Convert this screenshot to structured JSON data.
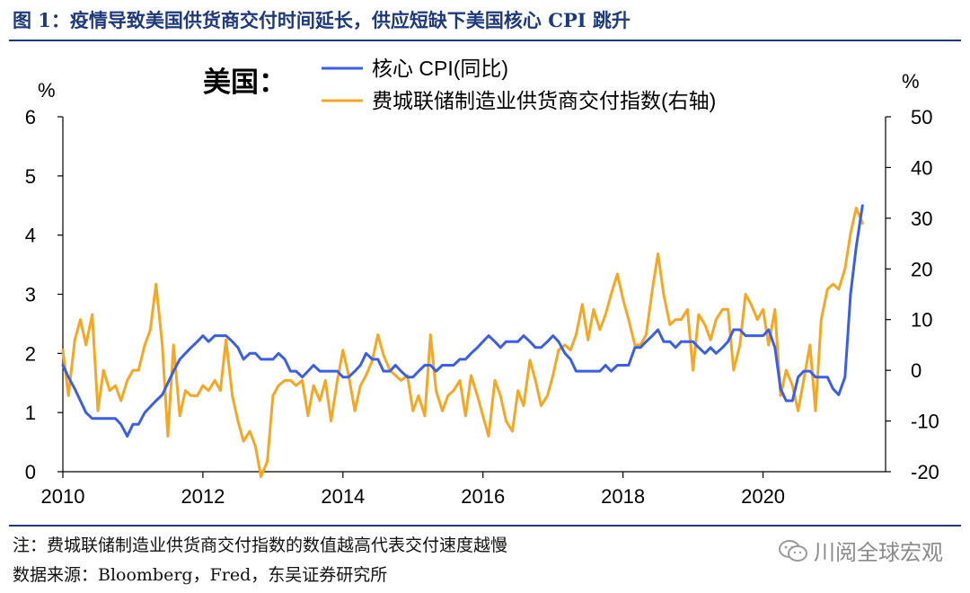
{
  "figure": {
    "title": "图 1：疫情导致美国供货商交付时间延长，供应短缺下美国核心 CPI 跳升",
    "note": "注：费城联储制造业供货商交付指数的数值越高代表交付速度越慢",
    "source": "数据来源：Bloomberg，Fred，东吴证券研究所",
    "watermark": "川阅全球宏观",
    "watermark_icon": "wechat-icon"
  },
  "chart_data": {
    "type": "line",
    "region_label": "美国：",
    "left_axis": {
      "unit": "%",
      "ylim": [
        0,
        6
      ],
      "ticks": [
        0,
        1,
        2,
        3,
        4,
        5,
        6
      ]
    },
    "right_axis": {
      "unit": "%",
      "ylim": [
        -20,
        50
      ],
      "ticks": [
        -20,
        -10,
        0,
        10,
        20,
        30,
        40,
        50
      ]
    },
    "x_axis": {
      "xlim": [
        2010.0,
        2021.75
      ],
      "ticks": [
        2010,
        2012,
        2014,
        2016,
        2018,
        2020
      ]
    },
    "grid": false,
    "legend_position": "top-center",
    "series": [
      {
        "name": "核心 CPI(同比)",
        "axis": "left",
        "color": "#3b5ee8",
        "points": [
          [
            2010.0,
            1.8
          ],
          [
            2010.08,
            1.6
          ],
          [
            2010.17,
            1.4
          ],
          [
            2010.25,
            1.2
          ],
          [
            2010.33,
            1.0
          ],
          [
            2010.42,
            0.9
          ],
          [
            2010.5,
            0.9
          ],
          [
            2010.58,
            0.9
          ],
          [
            2010.67,
            0.9
          ],
          [
            2010.75,
            0.9
          ],
          [
            2010.83,
            0.8
          ],
          [
            2010.92,
            0.6
          ],
          [
            2011.0,
            0.8
          ],
          [
            2011.08,
            0.8
          ],
          [
            2011.17,
            1.0
          ],
          [
            2011.25,
            1.1
          ],
          [
            2011.33,
            1.2
          ],
          [
            2011.42,
            1.3
          ],
          [
            2011.5,
            1.5
          ],
          [
            2011.58,
            1.7
          ],
          [
            2011.67,
            1.9
          ],
          [
            2011.75,
            2.0
          ],
          [
            2011.83,
            2.1
          ],
          [
            2011.92,
            2.2
          ],
          [
            2012.0,
            2.3
          ],
          [
            2012.08,
            2.2
          ],
          [
            2012.17,
            2.3
          ],
          [
            2012.25,
            2.3
          ],
          [
            2012.33,
            2.3
          ],
          [
            2012.42,
            2.2
          ],
          [
            2012.5,
            2.1
          ],
          [
            2012.58,
            1.9
          ],
          [
            2012.67,
            2.0
          ],
          [
            2012.75,
            2.0
          ],
          [
            2012.83,
            1.9
          ],
          [
            2012.92,
            1.9
          ],
          [
            2013.0,
            1.9
          ],
          [
            2013.08,
            2.0
          ],
          [
            2013.17,
            1.9
          ],
          [
            2013.25,
            1.7
          ],
          [
            2013.33,
            1.7
          ],
          [
            2013.42,
            1.6
          ],
          [
            2013.5,
            1.7
          ],
          [
            2013.58,
            1.8
          ],
          [
            2013.67,
            1.7
          ],
          [
            2013.75,
            1.7
          ],
          [
            2013.83,
            1.7
          ],
          [
            2013.92,
            1.7
          ],
          [
            2014.0,
            1.6
          ],
          [
            2014.08,
            1.6
          ],
          [
            2014.17,
            1.7
          ],
          [
            2014.25,
            1.8
          ],
          [
            2014.33,
            2.0
          ],
          [
            2014.42,
            1.9
          ],
          [
            2014.5,
            1.9
          ],
          [
            2014.58,
            1.7
          ],
          [
            2014.67,
            1.7
          ],
          [
            2014.75,
            1.8
          ],
          [
            2014.83,
            1.7
          ],
          [
            2014.92,
            1.6
          ],
          [
            2015.0,
            1.6
          ],
          [
            2015.08,
            1.7
          ],
          [
            2015.17,
            1.8
          ],
          [
            2015.25,
            1.8
          ],
          [
            2015.33,
            1.7
          ],
          [
            2015.42,
            1.8
          ],
          [
            2015.5,
            1.8
          ],
          [
            2015.58,
            1.8
          ],
          [
            2015.67,
            1.9
          ],
          [
            2015.75,
            1.9
          ],
          [
            2015.83,
            2.0
          ],
          [
            2015.92,
            2.1
          ],
          [
            2016.0,
            2.2
          ],
          [
            2016.08,
            2.3
          ],
          [
            2016.17,
            2.2
          ],
          [
            2016.25,
            2.1
          ],
          [
            2016.33,
            2.2
          ],
          [
            2016.42,
            2.2
          ],
          [
            2016.5,
            2.2
          ],
          [
            2016.58,
            2.3
          ],
          [
            2016.67,
            2.2
          ],
          [
            2016.75,
            2.1
          ],
          [
            2016.83,
            2.1
          ],
          [
            2016.92,
            2.2
          ],
          [
            2017.0,
            2.3
          ],
          [
            2017.08,
            2.2
          ],
          [
            2017.17,
            2.0
          ],
          [
            2017.25,
            1.9
          ],
          [
            2017.33,
            1.7
          ],
          [
            2017.42,
            1.7
          ],
          [
            2017.5,
            1.7
          ],
          [
            2017.58,
            1.7
          ],
          [
            2017.67,
            1.7
          ],
          [
            2017.75,
            1.8
          ],
          [
            2017.83,
            1.7
          ],
          [
            2017.92,
            1.8
          ],
          [
            2018.0,
            1.8
          ],
          [
            2018.08,
            1.8
          ],
          [
            2018.17,
            2.1
          ],
          [
            2018.25,
            2.1
          ],
          [
            2018.33,
            2.2
          ],
          [
            2018.42,
            2.3
          ],
          [
            2018.5,
            2.4
          ],
          [
            2018.58,
            2.2
          ],
          [
            2018.67,
            2.2
          ],
          [
            2018.75,
            2.1
          ],
          [
            2018.83,
            2.2
          ],
          [
            2018.92,
            2.2
          ],
          [
            2019.0,
            2.2
          ],
          [
            2019.08,
            2.1
          ],
          [
            2019.17,
            2.0
          ],
          [
            2019.25,
            2.1
          ],
          [
            2019.33,
            2.0
          ],
          [
            2019.42,
            2.1
          ],
          [
            2019.5,
            2.2
          ],
          [
            2019.58,
            2.4
          ],
          [
            2019.67,
            2.4
          ],
          [
            2019.75,
            2.3
          ],
          [
            2019.83,
            2.3
          ],
          [
            2019.92,
            2.3
          ],
          [
            2020.0,
            2.3
          ],
          [
            2020.08,
            2.4
          ],
          [
            2020.17,
            2.1
          ],
          [
            2020.25,
            1.4
          ],
          [
            2020.33,
            1.2
          ],
          [
            2020.42,
            1.2
          ],
          [
            2020.5,
            1.6
          ],
          [
            2020.58,
            1.7
          ],
          [
            2020.67,
            1.7
          ],
          [
            2020.75,
            1.6
          ],
          [
            2020.83,
            1.6
          ],
          [
            2020.92,
            1.6
          ],
          [
            2021.0,
            1.4
          ],
          [
            2021.08,
            1.3
          ],
          [
            2021.17,
            1.6
          ],
          [
            2021.25,
            3.0
          ],
          [
            2021.33,
            3.8
          ],
          [
            2021.42,
            4.5
          ]
        ]
      },
      {
        "name": "费城联储制造业供货商交付指数(右轴)",
        "axis": "right",
        "color": "#f5a623",
        "points": [
          [
            2010.0,
            4
          ],
          [
            2010.08,
            -5
          ],
          [
            2010.17,
            6
          ],
          [
            2010.25,
            10
          ],
          [
            2010.33,
            5
          ],
          [
            2010.42,
            11
          ],
          [
            2010.5,
            -8
          ],
          [
            2010.58,
            0
          ],
          [
            2010.67,
            -4
          ],
          [
            2010.75,
            -3
          ],
          [
            2010.83,
            -6
          ],
          [
            2010.92,
            -2
          ],
          [
            2011.0,
            0
          ],
          [
            2011.08,
            0
          ],
          [
            2011.17,
            5
          ],
          [
            2011.25,
            8
          ],
          [
            2011.33,
            17
          ],
          [
            2011.42,
            5
          ],
          [
            2011.5,
            -13
          ],
          [
            2011.58,
            5
          ],
          [
            2011.67,
            -9
          ],
          [
            2011.75,
            -4
          ],
          [
            2011.83,
            -5
          ],
          [
            2011.92,
            -5
          ],
          [
            2012.0,
            -3
          ],
          [
            2012.08,
            -4
          ],
          [
            2012.17,
            -2
          ],
          [
            2012.25,
            -4
          ],
          [
            2012.33,
            6
          ],
          [
            2012.42,
            -5
          ],
          [
            2012.5,
            -10
          ],
          [
            2012.58,
            -14
          ],
          [
            2012.67,
            -12
          ],
          [
            2012.75,
            -15
          ],
          [
            2012.83,
            -21
          ],
          [
            2012.92,
            -18
          ],
          [
            2013.0,
            -5
          ],
          [
            2013.08,
            -3
          ],
          [
            2013.17,
            -2
          ],
          [
            2013.25,
            -2
          ],
          [
            2013.33,
            -3
          ],
          [
            2013.42,
            -2
          ],
          [
            2013.5,
            -9
          ],
          [
            2013.58,
            -3
          ],
          [
            2013.67,
            -6
          ],
          [
            2013.75,
            -2
          ],
          [
            2013.83,
            -10
          ],
          [
            2013.92,
            -2
          ],
          [
            2014.0,
            4
          ],
          [
            2014.08,
            -1
          ],
          [
            2014.17,
            -8
          ],
          [
            2014.25,
            -3
          ],
          [
            2014.33,
            -1
          ],
          [
            2014.42,
            2
          ],
          [
            2014.5,
            7
          ],
          [
            2014.58,
            3
          ],
          [
            2014.67,
            0
          ],
          [
            2014.75,
            -1
          ],
          [
            2014.83,
            -2
          ],
          [
            2014.92,
            -1
          ],
          [
            2015.0,
            -8
          ],
          [
            2015.08,
            -5
          ],
          [
            2015.17,
            -9
          ],
          [
            2015.25,
            7
          ],
          [
            2015.33,
            -4
          ],
          [
            2015.42,
            -8
          ],
          [
            2015.5,
            -5
          ],
          [
            2015.58,
            -4
          ],
          [
            2015.67,
            -2
          ],
          [
            2015.75,
            -9
          ],
          [
            2015.83,
            -1
          ],
          [
            2015.92,
            -5
          ],
          [
            2016.0,
            -9
          ],
          [
            2016.08,
            -13
          ],
          [
            2016.17,
            -2
          ],
          [
            2016.25,
            -5
          ],
          [
            2016.33,
            -10
          ],
          [
            2016.42,
            -12
          ],
          [
            2016.5,
            -4
          ],
          [
            2016.58,
            -7
          ],
          [
            2016.67,
            2
          ],
          [
            2016.75,
            -2
          ],
          [
            2016.83,
            -7
          ],
          [
            2016.92,
            -5
          ],
          [
            2017.0,
            -1
          ],
          [
            2017.08,
            4
          ],
          [
            2017.17,
            5
          ],
          [
            2017.25,
            4
          ],
          [
            2017.33,
            7
          ],
          [
            2017.42,
            13
          ],
          [
            2017.5,
            6
          ],
          [
            2017.58,
            12
          ],
          [
            2017.67,
            8
          ],
          [
            2017.75,
            11
          ],
          [
            2017.83,
            15
          ],
          [
            2017.92,
            19
          ],
          [
            2018.0,
            14
          ],
          [
            2018.08,
            10
          ],
          [
            2018.17,
            5
          ],
          [
            2018.25,
            5
          ],
          [
            2018.33,
            7
          ],
          [
            2018.42,
            16
          ],
          [
            2018.5,
            23
          ],
          [
            2018.58,
            15
          ],
          [
            2018.67,
            9
          ],
          [
            2018.75,
            10
          ],
          [
            2018.83,
            10
          ],
          [
            2018.92,
            12
          ],
          [
            2019.0,
            0
          ],
          [
            2019.08,
            11
          ],
          [
            2019.17,
            9
          ],
          [
            2019.25,
            6
          ],
          [
            2019.33,
            10
          ],
          [
            2019.42,
            12
          ],
          [
            2019.5,
            12
          ],
          [
            2019.58,
            0
          ],
          [
            2019.67,
            5
          ],
          [
            2019.75,
            15
          ],
          [
            2019.83,
            13
          ],
          [
            2019.92,
            10
          ],
          [
            2020.0,
            12
          ],
          [
            2020.08,
            5
          ],
          [
            2020.17,
            12
          ],
          [
            2020.25,
            -5
          ],
          [
            2020.33,
            0
          ],
          [
            2020.42,
            -3
          ],
          [
            2020.5,
            -8
          ],
          [
            2020.58,
            -2
          ],
          [
            2020.67,
            5
          ],
          [
            2020.75,
            -8
          ],
          [
            2020.83,
            10
          ],
          [
            2020.92,
            16
          ],
          [
            2021.0,
            17
          ],
          [
            2021.08,
            16
          ],
          [
            2021.17,
            20
          ],
          [
            2021.25,
            27
          ],
          [
            2021.33,
            32
          ],
          [
            2021.42,
            29
          ]
        ]
      }
    ]
  }
}
